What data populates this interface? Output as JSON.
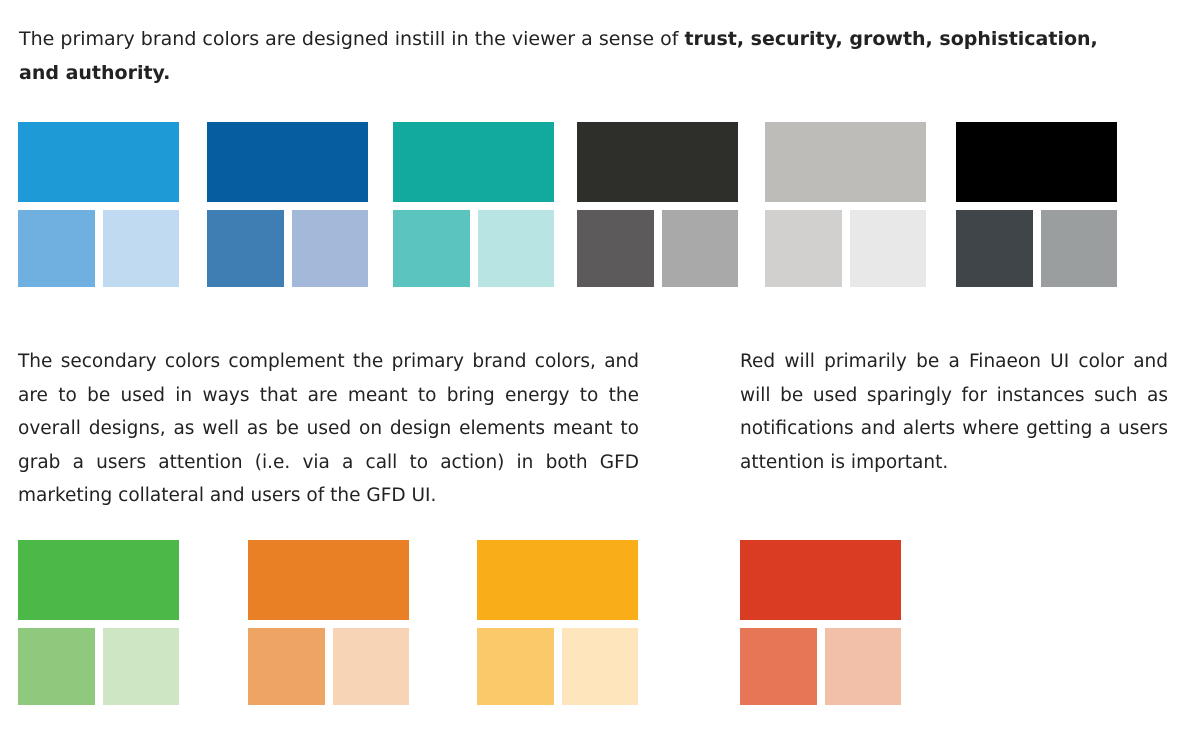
{
  "intro": {
    "text": "The primary brand colors are designed instill in the viewer a sense of ",
    "bold": "trust, security, growth, sophistication, and authority."
  },
  "secondary_text": "The secondary colors complement the primary brand colors, and are to be used in ways that are meant to bring energy to the overall designs, as well as be used on design elements meant to grab a users attention (i.e. via a call to action) in both GFD marketing collateral and users of the GFD UI.",
  "red_text": "Red will primarily be a Finaeon UI color and will be used sparingly for instances such as notifications and alerts where getting a users attention is important.",
  "palettes": {
    "primary": [
      {
        "main": "#1E9AD6",
        "tint1": "#6FB0E0",
        "tint2": "#BFDAF1"
      },
      {
        "main": "#045E9F",
        "tint1": "#3F7EB3",
        "tint2": "#A4B8DA"
      },
      {
        "main": "#12A99F",
        "tint1": "#5CC4BE",
        "tint2": "#B8E5E3"
      },
      {
        "main": "#2E2E2A",
        "tint1": "#5C5A5B",
        "tint2": "#A9A9A9"
      },
      {
        "main": "#BEBCB8",
        "tint1": "#D2D0CE",
        "tint2": "#E8E8E8"
      },
      {
        "main": "#000000",
        "tint1": "#3F4548",
        "tint2": "#9B9E9F"
      }
    ],
    "secondary": [
      {
        "main": "#4CB848",
        "tint1": "#8FC97E",
        "tint2": "#CEE6C4"
      },
      {
        "main": "#E98026",
        "tint1": "#EEA464",
        "tint2": "#F7D4B5"
      },
      {
        "main": "#F9AE19",
        "tint1": "#FCC96A",
        "tint2": "#FEE5BB"
      }
    ],
    "alert": [
      {
        "main": "#D93C22",
        "tint1": "#E57756",
        "tint2": "#F2C0A8"
      }
    ]
  }
}
